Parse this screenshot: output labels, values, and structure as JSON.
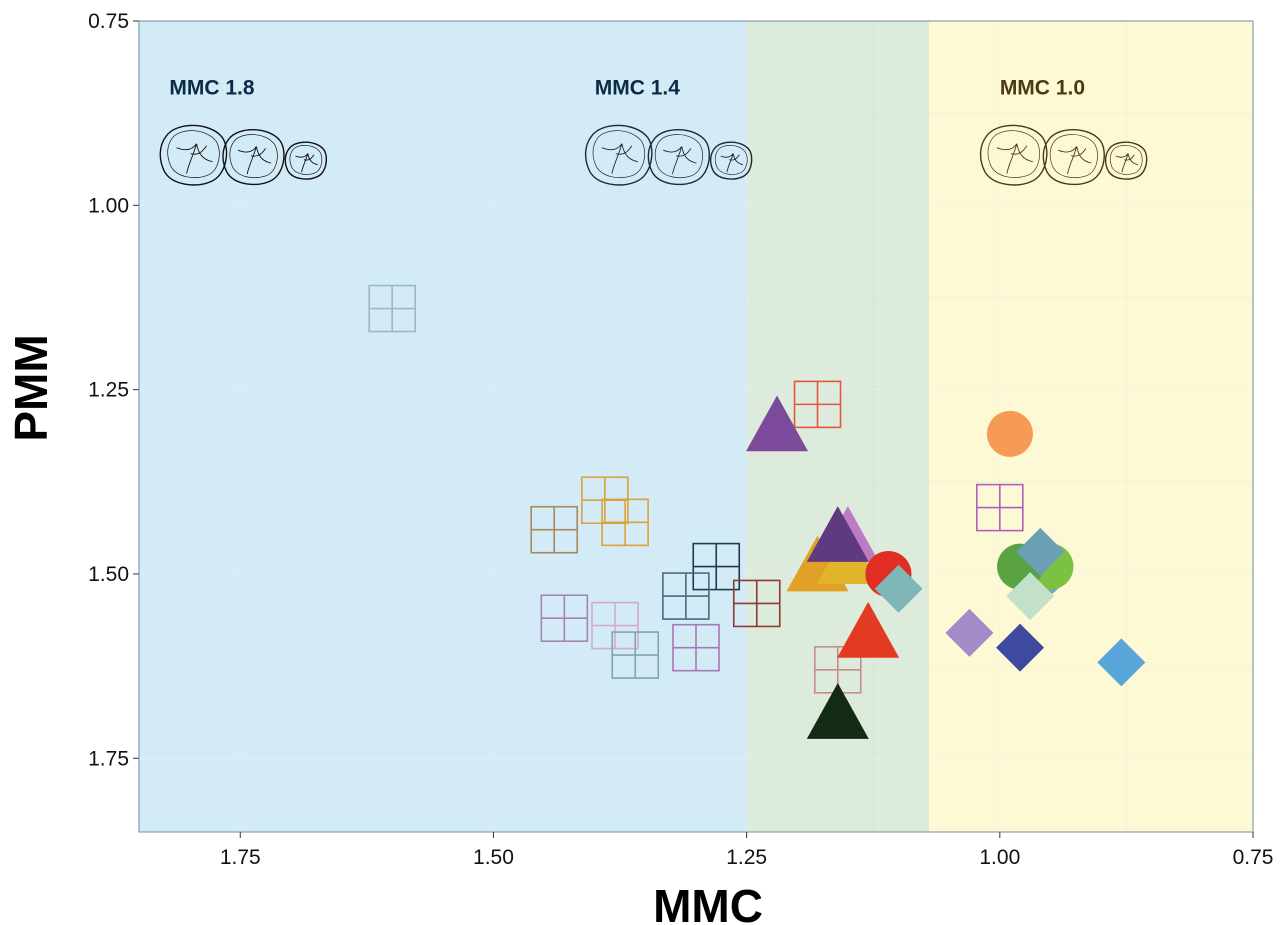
{
  "chart_data": {
    "type": "scatter",
    "title": "",
    "xlabel": "MMC",
    "ylabel": "PMM",
    "xlim": [
      1.85,
      0.75
    ],
    "ylim": [
      0.75,
      1.85
    ],
    "x_reversed": true,
    "y_reversed": true,
    "grid": true,
    "legend": "none",
    "x_ticks": [
      "1.75",
      "1.50",
      "1.25",
      "1.00",
      "0.75"
    ],
    "y_ticks": [
      "0.75",
      "1.00",
      "1.25",
      "1.50",
      "1.75"
    ],
    "regions": [
      {
        "from": 1.85,
        "to": 1.25,
        "color": "#d3ebf7"
      },
      {
        "from": 1.25,
        "to": 1.07,
        "color": "#dcebdb"
      },
      {
        "from": 1.07,
        "to": 0.75,
        "color": "#fdf9d5"
      }
    ],
    "region_labels": [
      {
        "text": "MMC 1.8",
        "x": 1.82,
        "y": 0.85,
        "color": "#0b2a45"
      },
      {
        "text": "MMC 1.4",
        "x": 1.4,
        "y": 0.85,
        "color": "#0b2a45"
      },
      {
        "text": "MMC 1.0",
        "x": 1.0,
        "y": 0.85,
        "color": "#4a3a12"
      }
    ],
    "tooth_groups": [
      {
        "x": 1.73,
        "y": 0.93,
        "stroke": "#111111"
      },
      {
        "x": 1.31,
        "y": 0.93,
        "stroke": "#1a2a3a"
      },
      {
        "x": 0.92,
        "y": 0.93,
        "stroke": "#4a3a12"
      }
    ],
    "points": [
      {
        "shape": "grid-square",
        "x": 1.6,
        "y": 1.14,
        "color": "#9eb7c2"
      },
      {
        "shape": "grid-square",
        "x": 1.18,
        "y": 1.27,
        "color": "#e2553e"
      },
      {
        "shape": "grid-square",
        "x": 1.0,
        "y": 1.41,
        "color": "#b15fb7"
      },
      {
        "shape": "grid-square",
        "x": 1.44,
        "y": 1.44,
        "color": "#a88a5a"
      },
      {
        "shape": "grid-square",
        "x": 1.39,
        "y": 1.4,
        "color": "#d9a43a"
      },
      {
        "shape": "grid-square",
        "x": 1.37,
        "y": 1.43,
        "color": "#d9a43a"
      },
      {
        "shape": "grid-square",
        "x": 1.28,
        "y": 1.49,
        "color": "#1d3a4e"
      },
      {
        "shape": "grid-square",
        "x": 1.31,
        "y": 1.53,
        "color": "#4b6a7e"
      },
      {
        "shape": "grid-square",
        "x": 1.24,
        "y": 1.54,
        "color": "#8d3a33"
      },
      {
        "shape": "grid-square",
        "x": 1.43,
        "y": 1.56,
        "color": "#a583b4"
      },
      {
        "shape": "grid-square",
        "x": 1.38,
        "y": 1.57,
        "color": "#d4a9cc"
      },
      {
        "shape": "grid-square",
        "x": 1.36,
        "y": 1.61,
        "color": "#82a3b0"
      },
      {
        "shape": "grid-square",
        "x": 1.3,
        "y": 1.6,
        "color": "#a877b8"
      },
      {
        "shape": "grid-square",
        "x": 1.16,
        "y": 1.63,
        "color": "#c98b8b"
      },
      {
        "shape": "triangle",
        "x": 1.22,
        "y": 1.3,
        "color": "#7c4a9b"
      },
      {
        "shape": "triangle",
        "x": 1.15,
        "y": 1.45,
        "color": "#be7ac2"
      },
      {
        "shape": "triangle",
        "x": 1.18,
        "y": 1.49,
        "color": "#e2a126"
      },
      {
        "shape": "triangle",
        "x": 1.15,
        "y": 1.48,
        "color": "#e0b52b"
      },
      {
        "shape": "triangle",
        "x": 1.16,
        "y": 1.45,
        "color": "#5e3b80"
      },
      {
        "shape": "triangle",
        "x": 1.13,
        "y": 1.58,
        "color": "#e23b22"
      },
      {
        "shape": "triangle",
        "x": 1.16,
        "y": 1.69,
        "color": "#132a13"
      },
      {
        "shape": "circle",
        "x": 1.11,
        "y": 1.5,
        "color": "#e02f22"
      },
      {
        "shape": "circle",
        "x": 0.99,
        "y": 1.31,
        "color": "#f69a56"
      },
      {
        "shape": "circle",
        "x": 0.96,
        "y": 1.5,
        "color": "#7ba4c7"
      },
      {
        "shape": "circle",
        "x": 0.95,
        "y": 1.49,
        "color": "#7cc242"
      },
      {
        "shape": "circle",
        "x": 0.98,
        "y": 1.49,
        "color": "#5aa342"
      },
      {
        "shape": "diamond",
        "x": 1.1,
        "y": 1.52,
        "color": "#7fb6b8"
      },
      {
        "shape": "diamond",
        "x": 0.96,
        "y": 1.47,
        "color": "#6a9fb5"
      },
      {
        "shape": "diamond",
        "x": 0.97,
        "y": 1.53,
        "color": "#c3e0cb"
      },
      {
        "shape": "diamond",
        "x": 1.03,
        "y": 1.58,
        "color": "#a38bc8"
      },
      {
        "shape": "diamond",
        "x": 0.98,
        "y": 1.6,
        "color": "#3e4aa0"
      },
      {
        "shape": "diamond",
        "x": 0.88,
        "y": 1.62,
        "color": "#58a6da"
      }
    ]
  }
}
